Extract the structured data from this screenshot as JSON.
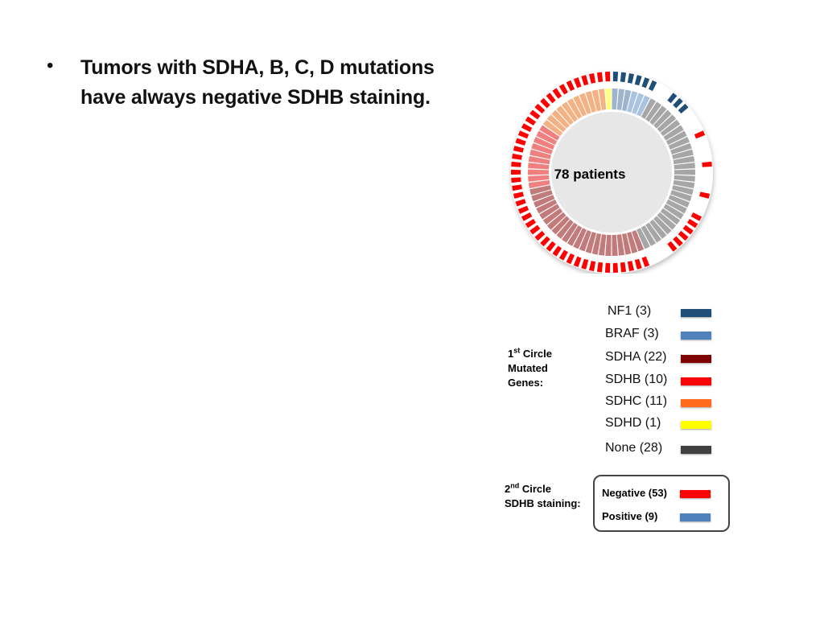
{
  "slide": {
    "bullet_symbol": "•",
    "bullet_text_line1": "Tumors with SDHA, B, C, D mutations",
    "bullet_text_line2": "have always negative SDHB staining."
  },
  "chart_data": {
    "type": "donut",
    "center_label": "78 patients",
    "total_patients": 78,
    "first_circle": {
      "heading_prefix": "1",
      "heading_sup": "st",
      "heading_rest_line1": " Circle",
      "heading_line2": "Mutated",
      "heading_line3": "Genes:",
      "categories": [
        {
          "key": "nf1",
          "label": "NF1 (3)",
          "count": 3,
          "color": "#1F4E79",
          "ring_color": "#9DB4CC"
        },
        {
          "key": "braf",
          "label": "BRAF (3)",
          "count": 3,
          "color": "#4F81BD",
          "ring_color": "#A9C3E0"
        },
        {
          "key": "sdha",
          "label": "SDHA (22)",
          "count": 22,
          "color": "#7F0000",
          "ring_color": "#C27B7B"
        },
        {
          "key": "sdhb",
          "label": "SDHB (10)",
          "count": 10,
          "color": "#FF0000",
          "ring_color": "#F08080"
        },
        {
          "key": "sdhc",
          "label": "SDHC (11)",
          "count": 11,
          "color": "#FF6A1F",
          "ring_color": "#F4B183"
        },
        {
          "key": "sdhd",
          "label": "SDHD (1)",
          "count": 1,
          "color": "#FFFF00",
          "ring_color": "#FFFF80"
        },
        {
          "key": "none",
          "label": "None (28)",
          "count": 28,
          "color": "#404040",
          "ring_color": "#A6A6A6"
        }
      ]
    },
    "second_circle": {
      "heading_prefix": "2",
      "heading_sup": "nd",
      "heading_rest_line1": " Circle",
      "heading_line2": "SDHB staining:",
      "categories": [
        {
          "key": "negative",
          "label": "Negative (53)",
          "count": 53,
          "color": "#FF0000"
        },
        {
          "key": "positive",
          "label": "Positive (9)",
          "count": 9,
          "color": "#1F4E79"
        }
      ],
      "order_clockwise_from_top": [
        "nf1",
        "braf",
        "none",
        "sdha",
        "sdhb",
        "sdhc",
        "sdhd"
      ],
      "staining_by_gene": {
        "nf1": {
          "positive": 3,
          "negative": 0,
          "unknown": 0
        },
        "braf": {
          "positive": 3,
          "negative": 0,
          "unknown": 0
        },
        "none": {
          "positive": 3,
          "negative": 9,
          "unknown": 16
        },
        "sdha": {
          "positive": 0,
          "negative": 22,
          "unknown": 0
        },
        "sdhb": {
          "positive": 0,
          "negative": 10,
          "unknown": 0
        },
        "sdhc": {
          "positive": 0,
          "negative": 11,
          "unknown": 0
        },
        "sdhd": {
          "positive": 0,
          "negative": 1,
          "unknown": 0
        }
      }
    }
  }
}
